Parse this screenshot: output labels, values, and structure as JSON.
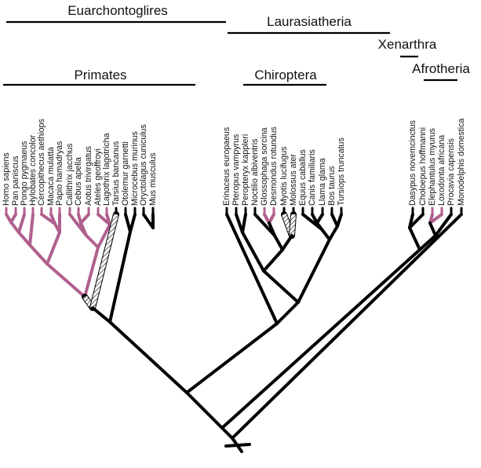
{
  "clades": {
    "euarchontoglires": "Euarchontoglires",
    "laurasiatheria": "Laurasiatheria",
    "xenarthra": "Xenarthra",
    "afrotheria": "Afrotheria",
    "primates": "Primates",
    "chiroptera": "Chiroptera"
  },
  "taxa": [
    "Homo sapiens",
    "Pan paniscus",
    "Pongo pygmaeus",
    "Hylobates concolor",
    "Cercopithecus aethiops",
    "Macaca mulatta",
    "Papio hamadryas",
    "Callithrix jacchus",
    "Cebus apella",
    "Aotus trivirgatus",
    "Ateles geoffroyi",
    "Lagothrix lagotricha",
    "Tarsius bancanus",
    "Otolemur garnetti",
    "Microcebus murinus",
    "Oryctolagus cuniculus",
    "Mus musculus",
    "Erinaceus europaeus",
    "Pteropus vampyrus",
    "Peropteryx kappleri",
    "Noctilio albiventris",
    "Glossophaga sorcina",
    "Desmondus rotundus",
    "Myotis lucifugus",
    "Molossus ater",
    "Equus caballus",
    "Canis familiaris",
    "Llama glama",
    "Bos taurus",
    "Tursiops truncatus",
    "Dasypus novemcinctus",
    "Choloepus hoffmanni",
    "Elephantulus myurus",
    "Loxodonta africana",
    "Procavia capensis",
    "Monodelphis domestica"
  ],
  "colors": {
    "branch": "#000000",
    "highlight": "#b0608e",
    "hatched": "#ffffff"
  }
}
